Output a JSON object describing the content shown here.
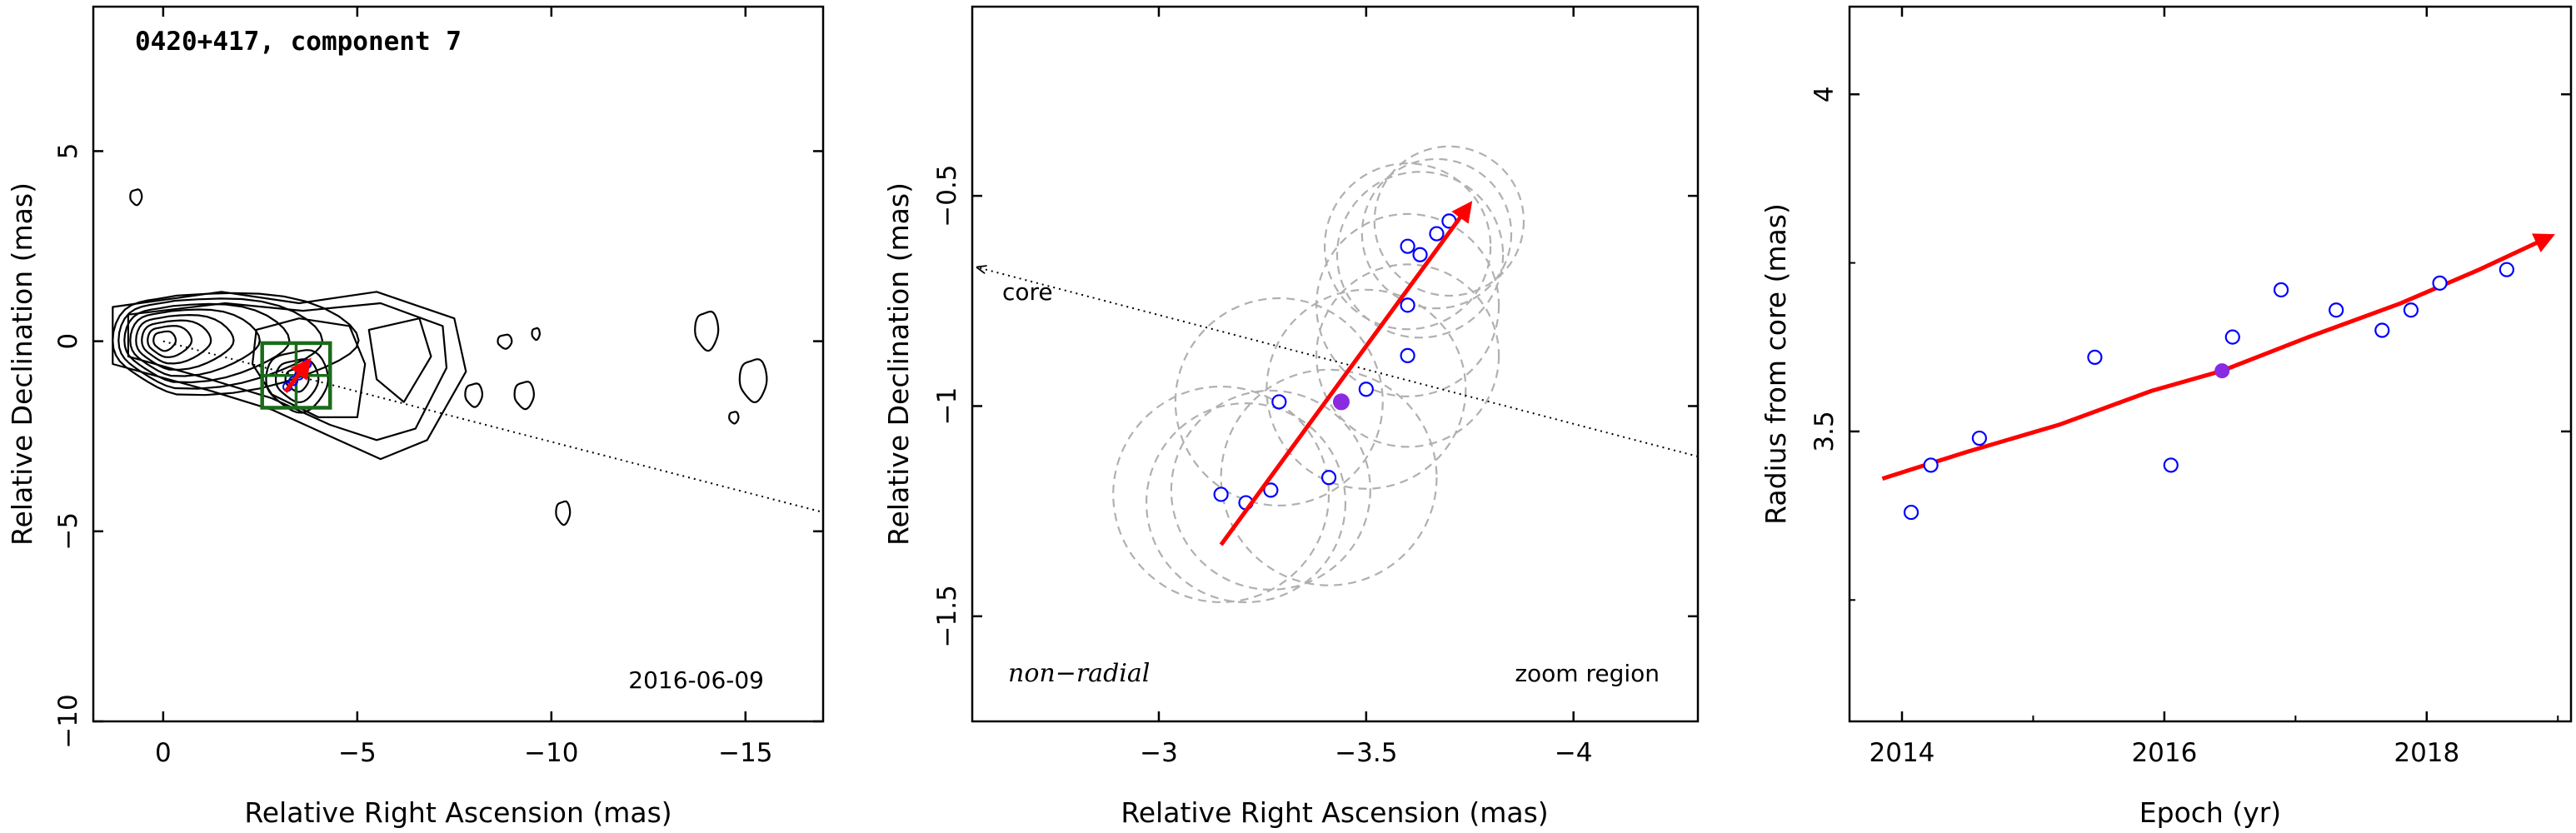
{
  "chart_data": [
    {
      "type": "scatter",
      "title": "0420+417, component 7",
      "date_label": "2016-06-09",
      "xlabel": "Relative Right Ascension (mas)",
      "ylabel": "Relative Declination (mas)",
      "xlim": [
        1.8,
        -17.0
      ],
      "ylim": [
        -10.0,
        8.8
      ],
      "xticks": [
        0,
        -5,
        -10,
        -15
      ],
      "xtick_labels": [
        "0",
        "−5",
        "−10",
        "−15"
      ],
      "yticks": [
        -10,
        -5,
        0,
        5
      ],
      "ytick_labels": [
        "−10",
        "−5",
        "0",
        "5"
      ],
      "contour_color": "#000000",
      "box_color": "#1a6b1a",
      "vector_color": "#ff0000",
      "marker_color": "#0000ff",
      "core_direction_line": {
        "from": [
          0.0,
          0.0
        ],
        "to": [
          -17.0,
          -4.5
        ],
        "style": "dotted"
      },
      "zoom_box": {
        "x": [
          -2.55,
          -4.3
        ],
        "y": [
          -1.75,
          -0.05
        ]
      },
      "motion_vector": {
        "from": [
          -3.15,
          -1.33
        ],
        "to": [
          -3.75,
          -0.52
        ]
      },
      "component_position": [
        -3.45,
        -1.0
      ]
    },
    {
      "type": "scatter",
      "corner_label": "non−radial",
      "region_label": "zoom region",
      "core_label": "core",
      "xlabel": "Relative Right Ascension (mas)",
      "ylabel": "Relative Declination (mas)",
      "xlim": [
        -2.55,
        -4.3
      ],
      "ylim": [
        -1.75,
        -0.05
      ],
      "xticks": [
        -3,
        -3.5,
        -4
      ],
      "xtick_labels": [
        "−3",
        "−3.5",
        "−4"
      ],
      "yticks": [
        -1.5,
        -1,
        -0.5
      ],
      "ytick_labels": [
        "−1.5",
        "−1",
        "−0.5"
      ],
      "circle_color": "#b0b0b0",
      "marker_color": "#0000ff",
      "mean_color": "#8a2be2",
      "vector_color": "#ff0000",
      "core_direction_line": {
        "from": [
          -2.55,
          -0.67
        ],
        "to": [
          -4.3,
          -1.12
        ],
        "style": "dotted"
      },
      "motion_vector": {
        "from": [
          -3.15,
          -1.33
        ],
        "to": [
          -3.75,
          -0.52
        ]
      },
      "epochs": [
        {
          "x": -3.15,
          "y": -1.21,
          "beam_r": 0.26
        },
        {
          "x": -3.21,
          "y": -1.23,
          "beam_r": 0.24
        },
        {
          "x": -3.27,
          "y": -1.2,
          "beam_r": 0.24
        },
        {
          "x": -3.29,
          "y": -0.99,
          "beam_r": 0.25
        },
        {
          "x": -3.41,
          "y": -1.17,
          "beam_r": 0.26
        },
        {
          "x": -3.5,
          "y": -0.96,
          "beam_r": 0.24
        },
        {
          "x": -3.6,
          "y": -0.88,
          "beam_r": 0.22
        },
        {
          "x": -3.6,
          "y": -0.76,
          "beam_r": 0.22
        },
        {
          "x": -3.6,
          "y": -0.62,
          "beam_r": 0.2
        },
        {
          "x": -3.63,
          "y": -0.64,
          "beam_r": 0.2
        },
        {
          "x": -3.67,
          "y": -0.59,
          "beam_r": 0.18
        },
        {
          "x": -3.7,
          "y": -0.56,
          "beam_r": 0.18
        }
      ],
      "mean_position": {
        "x": -3.44,
        "y": -0.99
      }
    },
    {
      "type": "scatter",
      "xlabel": "Epoch (yr)",
      "ylabel": "Radius from core (mas)",
      "xlim": [
        2013.6,
        2019.1
      ],
      "ylim": [
        3.07,
        4.13
      ],
      "xticks": [
        2014,
        2016,
        2018
      ],
      "xtick_labels": [
        "2014",
        "2016",
        "2018"
      ],
      "yticks": [
        3.5,
        4
      ],
      "ytick_labels": [
        "3.5",
        "4"
      ],
      "marker_color": "#0000ff",
      "mean_color": "#8a2be2",
      "fit_color": "#ff0000",
      "points": [
        {
          "x": 2014.07,
          "y": 3.38
        },
        {
          "x": 2014.22,
          "y": 3.45
        },
        {
          "x": 2014.59,
          "y": 3.49
        },
        {
          "x": 2015.47,
          "y": 3.61
        },
        {
          "x": 2016.05,
          "y": 3.45
        },
        {
          "x": 2016.52,
          "y": 3.64
        },
        {
          "x": 2016.89,
          "y": 3.71
        },
        {
          "x": 2017.31,
          "y": 3.68
        },
        {
          "x": 2017.66,
          "y": 3.65
        },
        {
          "x": 2017.88,
          "y": 3.68
        },
        {
          "x": 2018.1,
          "y": 3.72
        },
        {
          "x": 2018.61,
          "y": 3.74
        }
      ],
      "mean_point": {
        "x": 2016.44,
        "y": 3.59
      },
      "fit_curve": [
        {
          "x": 2013.85,
          "y": 3.43
        },
        {
          "x": 2014.5,
          "y": 3.47
        },
        {
          "x": 2015.2,
          "y": 3.51
        },
        {
          "x": 2015.9,
          "y": 3.56
        },
        {
          "x": 2016.44,
          "y": 3.59
        },
        {
          "x": 2017.1,
          "y": 3.64
        },
        {
          "x": 2017.8,
          "y": 3.69
        },
        {
          "x": 2018.4,
          "y": 3.74
        },
        {
          "x": 2018.95,
          "y": 3.79
        }
      ]
    }
  ]
}
